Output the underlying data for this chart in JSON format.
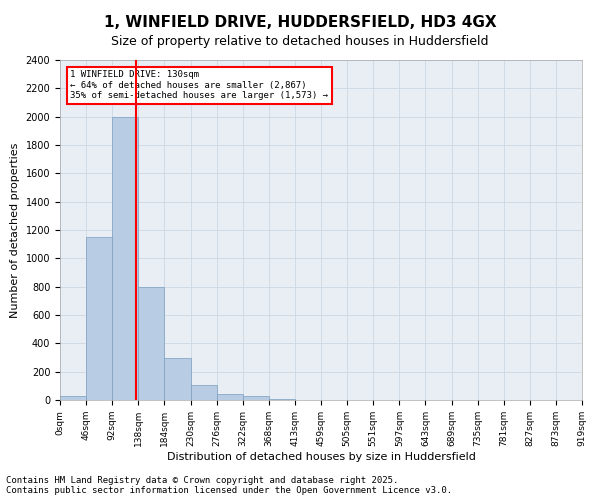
{
  "title_line1": "1, WINFIELD DRIVE, HUDDERSFIELD, HD3 4GX",
  "title_line2": "Size of property relative to detached houses in Huddersfield",
  "xlabel": "Distribution of detached houses by size in Huddersfield",
  "ylabel": "Number of detached properties",
  "bar_values": [
    30,
    1150,
    2000,
    800,
    300,
    105,
    40,
    25,
    10,
    0,
    0,
    0,
    0,
    0,
    0,
    0,
    0,
    0,
    0,
    0
  ],
  "bar_labels": [
    "0sqm",
    "46sqm",
    "92sqm",
    "138sqm",
    "184sqm",
    "230sqm",
    "276sqm",
    "322sqm",
    "368sqm",
    "413sqm",
    "459sqm",
    "505sqm",
    "551sqm",
    "597sqm",
    "643sqm",
    "689sqm",
    "735sqm",
    "781sqm",
    "827sqm",
    "873sqm",
    "919sqm"
  ],
  "bar_color": "#b8cce4",
  "bar_edgecolor": "#7a9fc0",
  "bar_width": 1.0,
  "vline_x": 2.9,
  "vline_color": "red",
  "annotation_text": "1 WINFIELD DRIVE: 130sqm\n← 64% of detached houses are smaller (2,867)\n35% of semi-detached houses are larger (1,573) →",
  "annotation_box_color": "white",
  "annotation_box_edgecolor": "red",
  "ylim": [
    0,
    2400
  ],
  "yticks": [
    0,
    200,
    400,
    600,
    800,
    1000,
    1200,
    1400,
    1600,
    1800,
    2000,
    2200,
    2400
  ],
  "grid_color": "#c8d4e0",
  "background_color": "#e8eef4",
  "footer_text": "Contains HM Land Registry data © Crown copyright and database right 2025.\nContains public sector information licensed under the Open Government Licence v3.0.",
  "title_fontsize": 11,
  "subtitle_fontsize": 9,
  "label_fontsize": 8,
  "tick_fontsize": 7,
  "footer_fontsize": 6.5
}
